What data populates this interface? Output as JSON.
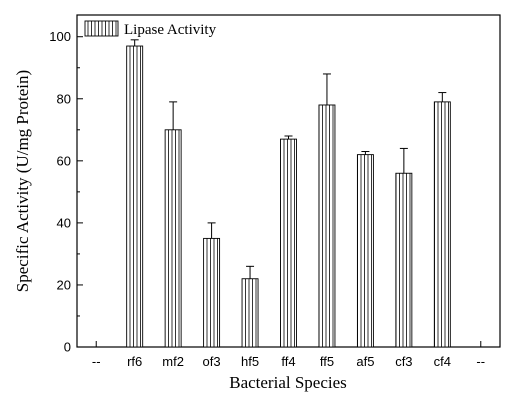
{
  "chart_data": {
    "type": "bar",
    "title": "",
    "xlabel": "Bacterial Species",
    "ylabel": "Specific Activity (U/mg Protein)",
    "ylim": [
      0,
      107
    ],
    "y_ticks": [
      0,
      20,
      40,
      60,
      80,
      100
    ],
    "x_edge_labels": [
      "--",
      "--"
    ],
    "categories": [
      "rf6",
      "mf2",
      "of3",
      "hf5",
      "ff4",
      "ff5",
      "af5",
      "cf3",
      "cf4"
    ],
    "series": [
      {
        "name": "Lipase Activity",
        "values": [
          97,
          70,
          35,
          22,
          67,
          78,
          62,
          56,
          79
        ],
        "errors": [
          2,
          9,
          5,
          4,
          1,
          10,
          1,
          8,
          3
        ]
      }
    ],
    "legend_position": "top-left",
    "bar_pattern": "vertical-hatch",
    "grid": false
  }
}
